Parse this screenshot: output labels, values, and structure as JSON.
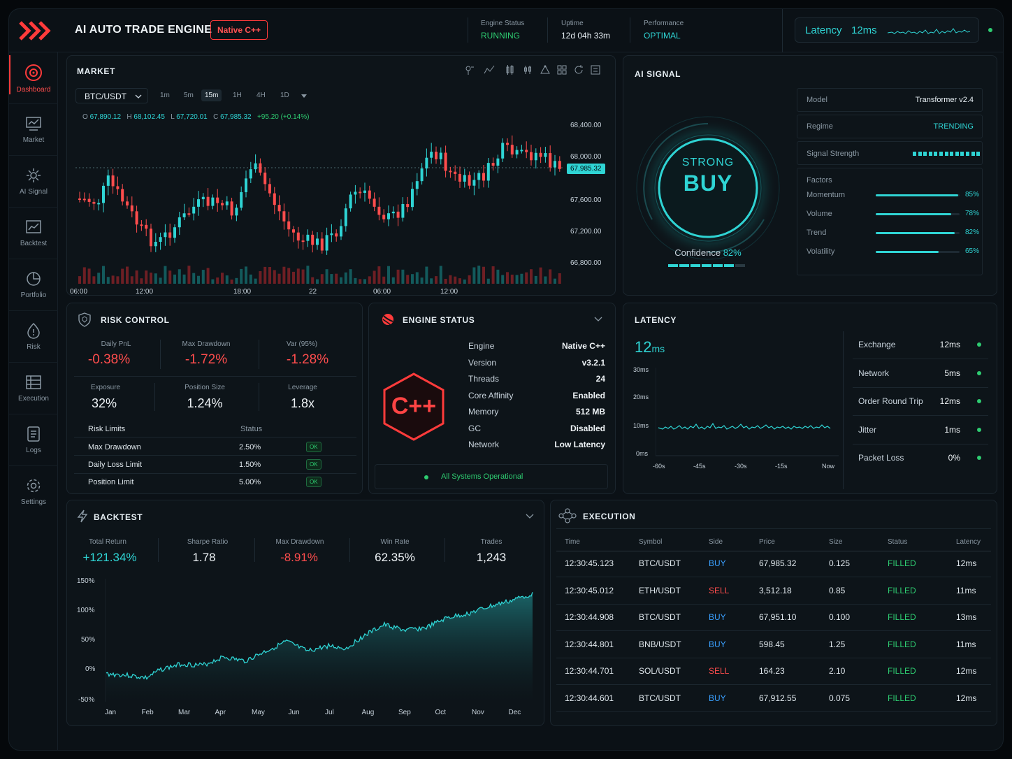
{
  "app": {
    "title": "AI AUTO TRADE ENGINE",
    "badge": "Native C++"
  },
  "header": {
    "engine_status": {
      "label": "Engine Status",
      "value": "RUNNING"
    },
    "uptime": {
      "label": "Uptime",
      "value": "12d 04h 33m"
    },
    "performance": {
      "label": "Performance",
      "value": "OPTIMAL"
    },
    "latency": {
      "label": "Latency",
      "value": "12ms"
    }
  },
  "sidebar": {
    "items": [
      {
        "label": "Dashboard",
        "icon": "dashboard-icon",
        "active": true
      },
      {
        "label": "Market",
        "icon": "market-icon"
      },
      {
        "label": "AI Signal",
        "icon": "ai-signal-icon"
      },
      {
        "label": "Backtest",
        "icon": "backtest-icon"
      },
      {
        "label": "Portfolio",
        "icon": "portfolio-icon"
      },
      {
        "label": "Risk",
        "icon": "risk-icon"
      },
      {
        "label": "Execution",
        "icon": "execution-icon"
      },
      {
        "label": "Logs",
        "icon": "logs-icon"
      },
      {
        "label": "Settings",
        "icon": "settings-icon"
      }
    ]
  },
  "market": {
    "title": "MARKET",
    "pair": "BTC/USDT",
    "timeframes": [
      "1m",
      "5m",
      "15m",
      "1H",
      "4H",
      "1D"
    ],
    "selected_timeframe": "15m",
    "ohlc": {
      "o_label": "O",
      "o": "67,890.12",
      "h_label": "H",
      "h": "68,102.45",
      "l_label": "L",
      "l": "67,720.01",
      "c_label": "C",
      "c": "67,985.32",
      "change": "+95.20 (+0.14%)"
    },
    "current_price": "67,985.32",
    "price_axis": [
      "68,400.00",
      "68,000.00",
      "67,600.00",
      "67,200.00",
      "66,800.00"
    ],
    "time_axis": [
      "06:00",
      "12:00",
      "18:00",
      "22",
      "06:00",
      "12:00"
    ]
  },
  "ai_signal": {
    "title": "AI SIGNAL",
    "signal_top": "STRONG",
    "signal_main": "BUY",
    "confidence_label": "Confidence",
    "confidence": "82%",
    "confidence_level": 0.82,
    "model_label": "Model",
    "model": "Transformer v2.4",
    "regime_label": "Regime",
    "regime": "TRENDING",
    "strength_label": "Signal Strength",
    "factors_label": "Factors",
    "factors": [
      {
        "name": "Momentum",
        "value": "85%",
        "level": 0.85
      },
      {
        "name": "Volume",
        "value": "78%",
        "level": 0.78
      },
      {
        "name": "Trend",
        "value": "82%",
        "level": 0.82
      },
      {
        "name": "Volatility",
        "value": "65%",
        "level": 0.65
      }
    ]
  },
  "risk": {
    "title": "RISK CONTROL",
    "stats_top": [
      {
        "label": "Daily PnL",
        "value": "-0.38%"
      },
      {
        "label": "Max Drawdown",
        "value": "-1.72%"
      },
      {
        "label": "Var (95%)",
        "value": "-1.28%"
      }
    ],
    "stats_mid": [
      {
        "label": "Exposure",
        "value": "32%"
      },
      {
        "label": "Position Size",
        "value": "1.24%"
      },
      {
        "label": "Leverage",
        "value": "1.8x"
      }
    ],
    "limits_header": "Risk Limits",
    "status_header": "Status",
    "limits": [
      {
        "name": "Max Drawdown",
        "value": "2.50%",
        "status": "OK"
      },
      {
        "name": "Daily Loss Limit",
        "value": "1.50%",
        "status": "OK"
      },
      {
        "name": "Position Limit",
        "value": "5.00%",
        "status": "OK"
      }
    ]
  },
  "engine": {
    "title": "ENGINE STATUS",
    "logo": "C++",
    "rows": [
      {
        "k": "Engine",
        "v": "Native C++"
      },
      {
        "k": "Version",
        "v": "v3.2.1"
      },
      {
        "k": "Threads",
        "v": "24"
      },
      {
        "k": "Core Affinity",
        "v": "Enabled"
      },
      {
        "k": "Memory",
        "v": "512 MB"
      },
      {
        "k": "GC",
        "v": "Disabled"
      },
      {
        "k": "Network",
        "v": "Low Latency"
      }
    ],
    "footer": "All Systems Operational"
  },
  "latency_panel": {
    "title": "LATENCY",
    "value": "12",
    "unit": "ms",
    "y_axis": [
      "30ms",
      "20ms",
      "10ms",
      "0ms"
    ],
    "x_axis": [
      "-60s",
      "-45s",
      "-30s",
      "-15s",
      "Now"
    ],
    "rows": [
      {
        "name": "Exchange",
        "value": "12ms"
      },
      {
        "name": "Network",
        "value": "5ms"
      },
      {
        "name": "Order Round Trip",
        "value": "12ms"
      },
      {
        "name": "Jitter",
        "value": "1ms"
      },
      {
        "name": "Packet Loss",
        "value": "0%"
      }
    ]
  },
  "backtest": {
    "title": "BACKTEST",
    "stats": [
      {
        "label": "Total Return",
        "value": "+121.34%"
      },
      {
        "label": "Sharpe Ratio",
        "value": "1.78"
      },
      {
        "label": "Max Drawdown",
        "value": "-8.91%"
      },
      {
        "label": "Win Rate",
        "value": "62.35%"
      },
      {
        "label": "Trades",
        "value": "1,243"
      }
    ],
    "y_axis": [
      "150%",
      "100%",
      "50%",
      "0%",
      "-50%"
    ],
    "x_axis": [
      "Jan",
      "Feb",
      "Mar",
      "Apr",
      "May",
      "Jun",
      "Jul",
      "Aug",
      "Sep",
      "Oct",
      "Nov",
      "Dec"
    ]
  },
  "execution": {
    "title": "EXECUTION",
    "columns": [
      "Time",
      "Symbol",
      "Side",
      "Price",
      "Size",
      "Status",
      "Latency"
    ],
    "rows": [
      {
        "time": "12:30:45.123",
        "symbol": "BTC/USDT",
        "side": "BUY",
        "price": "67,985.32",
        "size": "0.125",
        "status": "FILLED",
        "latency": "12ms"
      },
      {
        "time": "12:30:45.012",
        "symbol": "ETH/USDT",
        "side": "SELL",
        "price": "3,512.18",
        "size": "0.85",
        "status": "FILLED",
        "latency": "11ms"
      },
      {
        "time": "12:30:44.908",
        "symbol": "BTC/USDT",
        "side": "BUY",
        "price": "67,951.10",
        "size": "0.100",
        "status": "FILLED",
        "latency": "13ms"
      },
      {
        "time": "12:30:44.801",
        "symbol": "BNB/USDT",
        "side": "BUY",
        "price": "598.45",
        "size": "1.25",
        "status": "FILLED",
        "latency": "11ms"
      },
      {
        "time": "12:30:44.701",
        "symbol": "SOL/USDT",
        "side": "SELL",
        "price": "164.23",
        "size": "2.10",
        "status": "FILLED",
        "latency": "12ms"
      },
      {
        "time": "12:30:44.601",
        "symbol": "BTC/USDT",
        "side": "BUY",
        "price": "67,912.55",
        "size": "0.075",
        "status": "FILLED",
        "latency": "12ms"
      }
    ]
  },
  "colors": {
    "accent": "#ff3b3b",
    "cyan": "#2fd4d4",
    "green": "#2ecc71",
    "background": "#0b1116"
  }
}
